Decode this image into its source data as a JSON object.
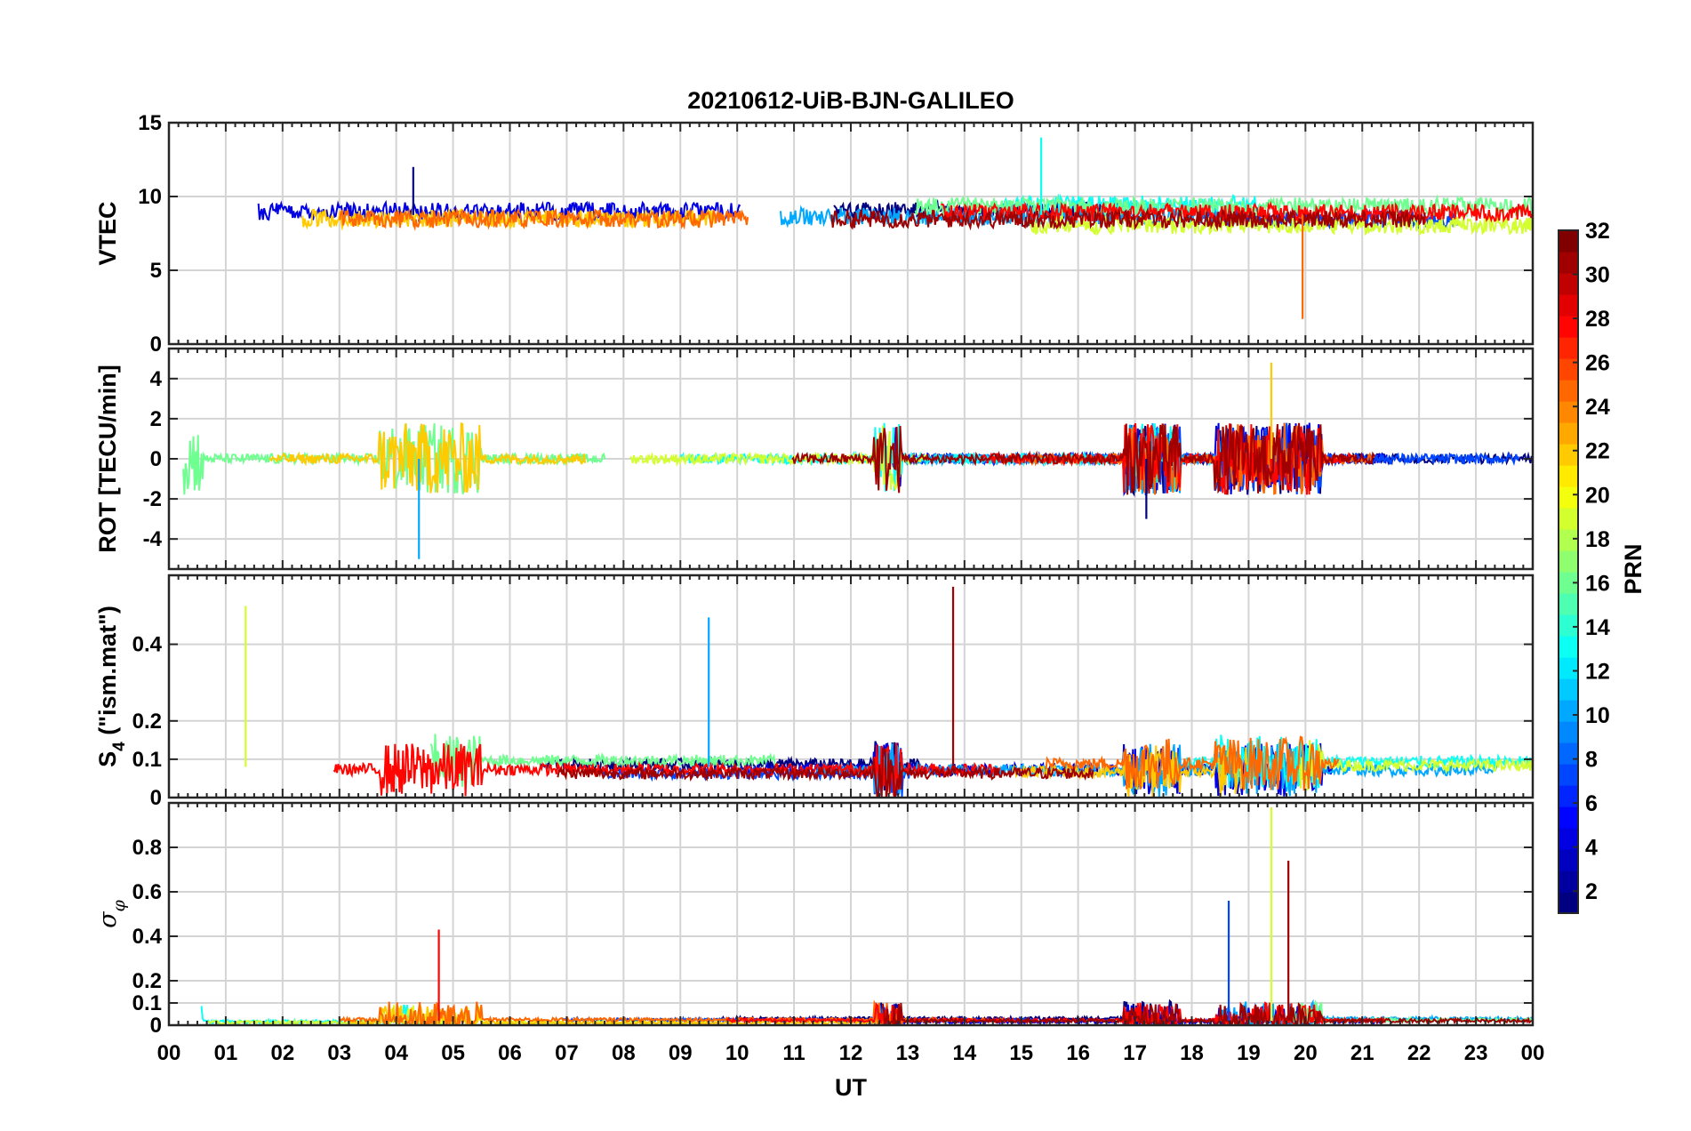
{
  "chart_data": {
    "type": "line",
    "title": "20210612-UiB-BJN-GALILEO",
    "xlabel": "UT",
    "x_ticks": [
      "00",
      "01",
      "02",
      "03",
      "04",
      "05",
      "06",
      "07",
      "08",
      "09",
      "10",
      "11",
      "12",
      "13",
      "14",
      "15",
      "16",
      "17",
      "18",
      "19",
      "20",
      "21",
      "22",
      "23",
      "00"
    ],
    "xlim": [
      0,
      24
    ],
    "grid": true,
    "panels": [
      {
        "ylabel": "VTEC",
        "ylim": [
          0,
          15
        ],
        "y_ticks": [
          "0",
          "5",
          "10",
          "15"
        ],
        "approx_level": [
          8,
          9.5
        ],
        "notable": [
          {
            "x": 4.3,
            "y": 12
          },
          {
            "x": 15.35,
            "y": 14
          },
          {
            "x": 19.95,
            "y": 1.7
          }
        ]
      },
      {
        "ylabel": "ROT [TECU/min]",
        "ylim": [
          -5.5,
          5.5
        ],
        "y_ticks": [
          "-4",
          "-2",
          "0",
          "2",
          "4"
        ],
        "approx_level": [
          0,
          0
        ],
        "notable": [
          {
            "x": 4.4,
            "y": -5
          },
          {
            "x": 19.4,
            "y": 4.8
          },
          {
            "x": 17.2,
            "y": -3
          }
        ]
      },
      {
        "ylabel": "S4 (\"ism.mat\")",
        "ylabel_main": "S",
        "ylabel_sub": "4",
        "ylabel_rest": " (\"ism.mat\")",
        "ylim": [
          0,
          0.58
        ],
        "y_ticks": [
          "0",
          "0.1",
          "0.2",
          "0.4"
        ],
        "approx_level": [
          0.06,
          0.1
        ],
        "notable": [
          {
            "x": 1.35,
            "y": 0.5
          },
          {
            "x": 13.8,
            "y": 0.55
          },
          {
            "x": 9.5,
            "y": 0.47
          }
        ]
      },
      {
        "ylabel": "σφ",
        "ylabel_main": "σ",
        "ylabel_sub": "φ",
        "ylim": [
          0,
          1
        ],
        "y_ticks": [
          "0",
          "0.1",
          "0.2",
          "0.4",
          "0.6",
          "0.8"
        ],
        "approx_level": [
          0.01,
          0.03
        ],
        "notable": [
          {
            "x": 4.75,
            "y": 0.43
          },
          {
            "x": 18.65,
            "y": 0.56
          },
          {
            "x": 19.4,
            "y": 0.98
          },
          {
            "x": 19.7,
            "y": 0.74
          }
        ]
      }
    ],
    "colorbar": {
      "label": "PRN",
      "range": [
        1,
        32
      ],
      "ticks": [
        "2",
        "4",
        "6",
        "8",
        "10",
        "12",
        "14",
        "16",
        "18",
        "20",
        "22",
        "24",
        "26",
        "28",
        "30",
        "32"
      ]
    }
  }
}
